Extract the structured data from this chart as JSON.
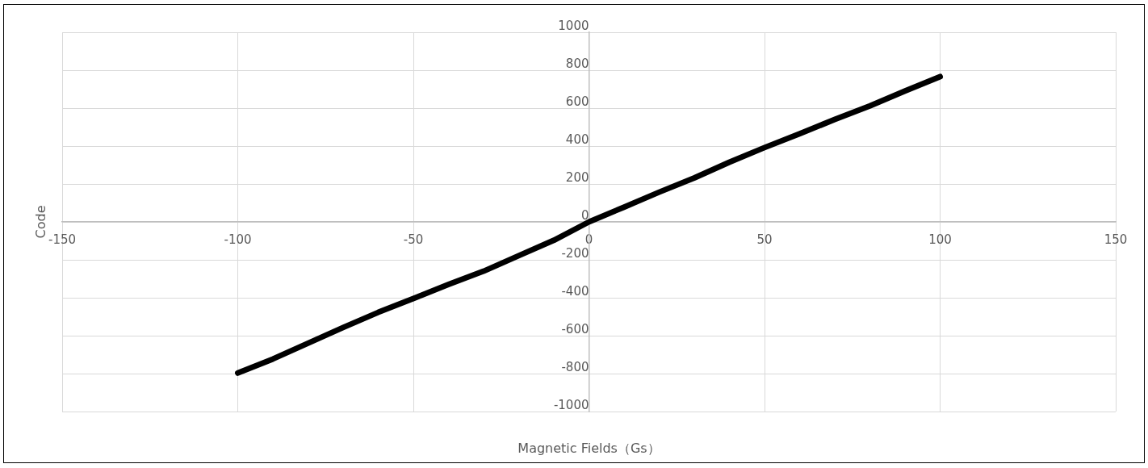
{
  "chart_data": {
    "type": "line",
    "xlabel": "Magnetic Fields（Gs）",
    "ylabel": "Code",
    "x": [
      -100,
      -90,
      -80,
      -70,
      -60,
      -50,
      -40,
      -30,
      -20,
      -10,
      0,
      10,
      20,
      30,
      40,
      50,
      60,
      70,
      80,
      90,
      100
    ],
    "series": [
      {
        "color": "#000000",
        "values": [
          -797,
          -723,
          -640,
          -557,
          -477,
          -404,
          -330,
          -260,
          -178,
          -97,
          0,
          78,
          157,
          232,
          315,
          392,
          465,
          540,
          612,
          690,
          766
        ]
      }
    ],
    "xlim": [
      -150,
      150
    ],
    "xticks": [
      -150,
      -100,
      -50,
      0,
      50,
      100,
      150
    ],
    "ylim": [
      -1000,
      1000
    ],
    "yticks": [
      -1000,
      -800,
      -600,
      -400,
      -200,
      0,
      200,
      400,
      600,
      800,
      1000
    ],
    "grid": true,
    "legend": false,
    "marker": "none",
    "line_style": "solid"
  }
}
